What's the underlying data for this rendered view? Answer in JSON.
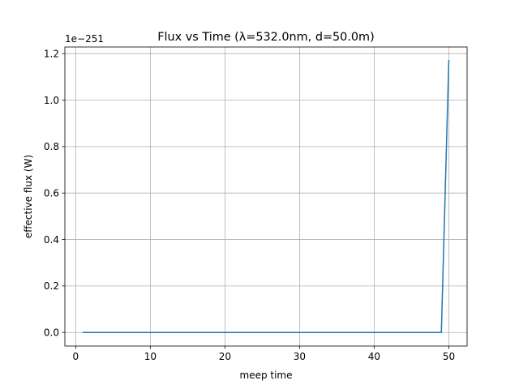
{
  "chart_data": {
    "type": "line",
    "title": "Flux vs Time (λ=532.0nm, d=50.0m)",
    "xlabel": "meep time",
    "ylabel": "effective flux (W)",
    "y_offset_label": "1e−251",
    "xlim": [
      -1.45,
      52.45
    ],
    "ylim": [
      -0.0585,
      1.2285
    ],
    "xticks": [
      0,
      10,
      20,
      30,
      40,
      50
    ],
    "yticks": [
      0.0,
      0.2,
      0.4,
      0.6,
      0.8,
      1.0,
      1.2
    ],
    "xtick_labels": [
      "0",
      "10",
      "20",
      "30",
      "40",
      "50"
    ],
    "ytick_labels": [
      "0.0",
      "0.2",
      "0.4",
      "0.6",
      "0.8",
      "1.0",
      "1.2"
    ],
    "grid": true,
    "series": [
      {
        "color": "#1f77b4",
        "x": [
          1,
          2,
          3,
          4,
          5,
          6,
          7,
          8,
          9,
          10,
          11,
          12,
          13,
          14,
          15,
          16,
          17,
          18,
          19,
          20,
          21,
          22,
          23,
          24,
          25,
          26,
          27,
          28,
          29,
          30,
          31,
          32,
          33,
          34,
          35,
          36,
          37,
          38,
          39,
          40,
          41,
          42,
          43,
          44,
          45,
          46,
          47,
          48,
          49,
          50
        ],
        "y": [
          0,
          0,
          0,
          0,
          0,
          0,
          0,
          0,
          0,
          0,
          0,
          0,
          0,
          0,
          0,
          0,
          0,
          0,
          0,
          0,
          0,
          0,
          0,
          0,
          0,
          0,
          0,
          0,
          0,
          0,
          0,
          0,
          0,
          0,
          0,
          0,
          0,
          0,
          0,
          0,
          0,
          0,
          0,
          0,
          0,
          0,
          0,
          0,
          0,
          1.17
        ]
      }
    ]
  }
}
